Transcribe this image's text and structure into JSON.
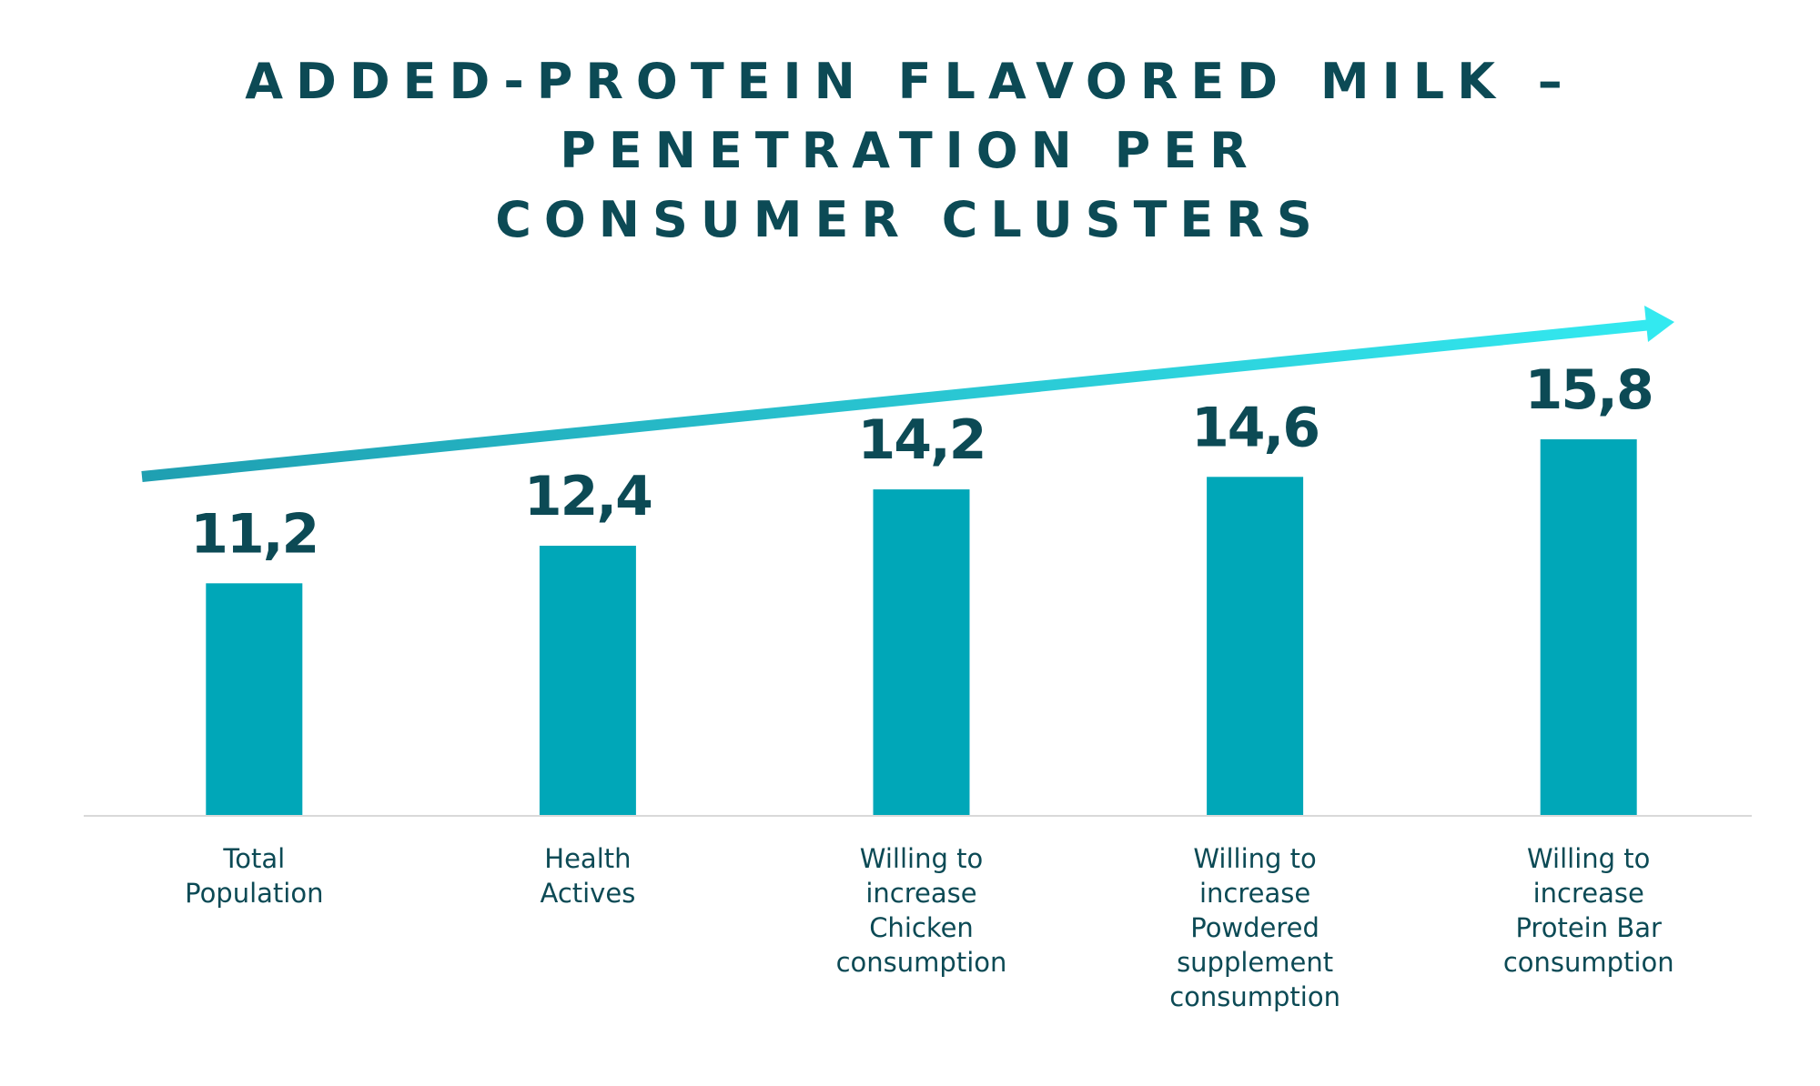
{
  "chart_data": {
    "type": "bar",
    "title": "ADDED-PROTEIN FLAVORED MILK – PENETRATION PER CONSUMER CLUSTERS",
    "title_lines": [
      "ADDED-PROTEIN FLAVORED MILK –",
      "PENETRATION PER",
      "CONSUMER CLUSTERS"
    ],
    "categories": [
      "Total Population",
      "Health Actives",
      "Willing to increase Chicken consumption",
      "Willing to increase Powdered supplement consumption",
      "Willing to increase Protein Bar consumption"
    ],
    "category_lines": [
      [
        "Total",
        "Population"
      ],
      [
        "Health",
        "Actives"
      ],
      [
        "Willing to",
        "increase",
        "Chicken",
        "consumption"
      ],
      [
        "Willing to",
        "increase",
        "Powdered",
        "supplement",
        "consumption"
      ],
      [
        "Willing to",
        "increase",
        "Protein Bar",
        "consumption"
      ]
    ],
    "values": [
      11.2,
      12.4,
      14.2,
      14.6,
      15.8
    ],
    "value_labels": [
      "11,2",
      "12,4",
      "14,2",
      "14,6",
      "15,8"
    ],
    "xlabel": "",
    "ylabel": "",
    "ylim": [
      3.8,
      15.8
    ],
    "grid": false,
    "legend": "none",
    "annotations": [
      {
        "type": "trend-arrow",
        "direction": "up-right"
      }
    ]
  },
  "colors": {
    "bar": "#00a7b8",
    "text": "#0c4a55",
    "axis": "#d9d9d9",
    "arrow_start": "#1f9fb1",
    "arrow_end": "#33e9f0"
  }
}
